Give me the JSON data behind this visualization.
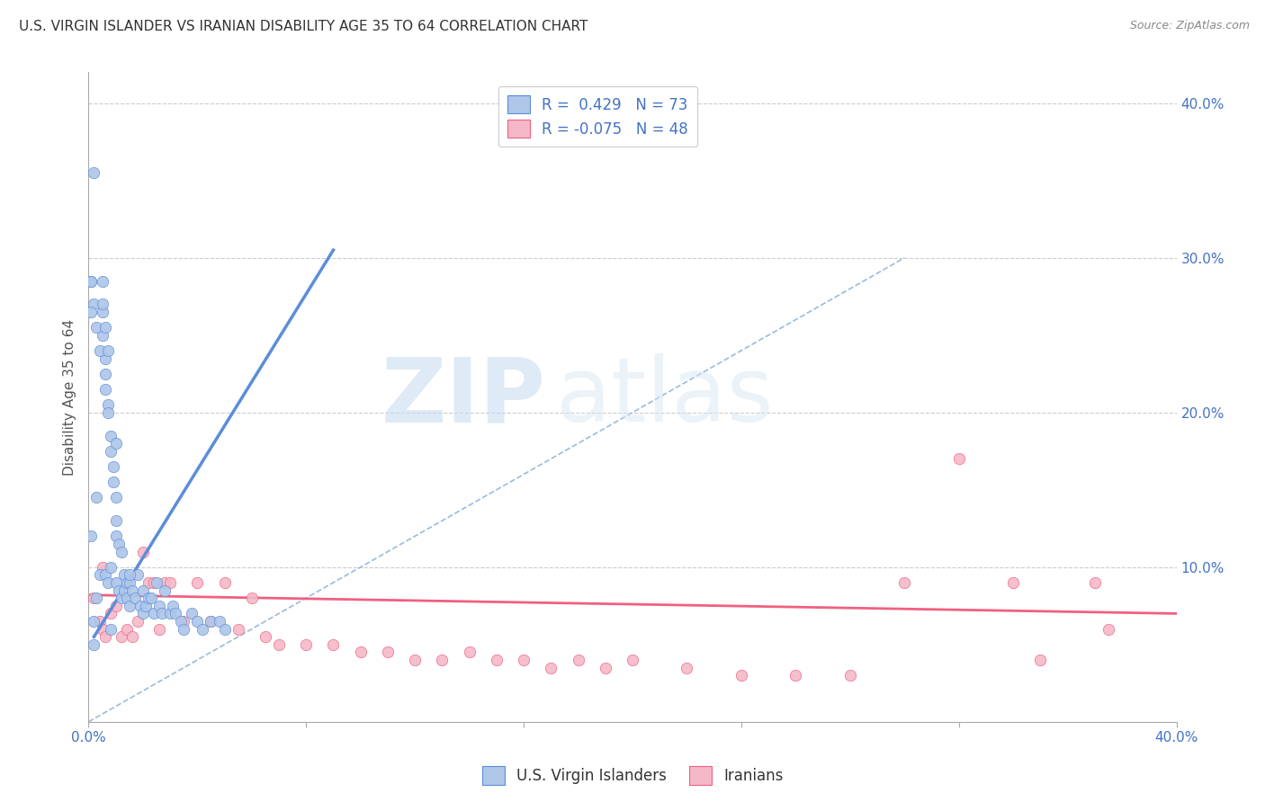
{
  "title": "U.S. VIRGIN ISLANDER VS IRANIAN DISABILITY AGE 35 TO 64 CORRELATION CHART",
  "source": "Source: ZipAtlas.com",
  "ylabel": "Disability Age 35 to 64",
  "x_min": 0.0,
  "x_max": 0.4,
  "y_min": 0.0,
  "y_max": 0.42,
  "blue_R": 0.429,
  "blue_N": 73,
  "pink_R": -0.075,
  "pink_N": 48,
  "blue_color": "#aec6e8",
  "pink_color": "#f4b8c8",
  "blue_line_color": "#5b8dd9",
  "pink_line_color": "#f06080",
  "diagonal_line_color": "#99bbdd",
  "legend_text_color": "#4472c4",
  "blue_scatter_x": [
    0.001,
    0.002,
    0.002,
    0.003,
    0.003,
    0.004,
    0.005,
    0.005,
    0.005,
    0.006,
    0.006,
    0.006,
    0.006,
    0.007,
    0.007,
    0.007,
    0.008,
    0.008,
    0.008,
    0.009,
    0.009,
    0.01,
    0.01,
    0.01,
    0.01,
    0.011,
    0.011,
    0.012,
    0.012,
    0.013,
    0.013,
    0.014,
    0.014,
    0.015,
    0.015,
    0.016,
    0.017,
    0.018,
    0.019,
    0.02,
    0.02,
    0.021,
    0.022,
    0.023,
    0.024,
    0.025,
    0.026,
    0.027,
    0.028,
    0.03,
    0.031,
    0.032,
    0.034,
    0.035,
    0.038,
    0.04,
    0.042,
    0.045,
    0.048,
    0.05,
    0.001,
    0.002,
    0.003,
    0.004,
    0.005,
    0.006,
    0.007,
    0.002,
    0.001,
    0.001,
    0.01,
    0.008,
    0.015
  ],
  "blue_scatter_y": [
    0.12,
    0.05,
    0.065,
    0.08,
    0.145,
    0.095,
    0.285,
    0.265,
    0.25,
    0.235,
    0.225,
    0.215,
    0.095,
    0.205,
    0.2,
    0.09,
    0.185,
    0.175,
    0.1,
    0.165,
    0.155,
    0.145,
    0.13,
    0.12,
    0.09,
    0.115,
    0.085,
    0.11,
    0.08,
    0.095,
    0.085,
    0.09,
    0.08,
    0.09,
    0.075,
    0.085,
    0.08,
    0.095,
    0.075,
    0.085,
    0.07,
    0.075,
    0.08,
    0.08,
    0.07,
    0.09,
    0.075,
    0.07,
    0.085,
    0.07,
    0.075,
    0.07,
    0.065,
    0.06,
    0.07,
    0.065,
    0.06,
    0.065,
    0.065,
    0.06,
    0.285,
    0.27,
    0.255,
    0.24,
    0.27,
    0.255,
    0.24,
    0.355,
    0.265,
    0.285,
    0.18,
    0.06,
    0.095
  ],
  "pink_scatter_x": [
    0.002,
    0.004,
    0.005,
    0.006,
    0.008,
    0.01,
    0.012,
    0.014,
    0.016,
    0.018,
    0.02,
    0.022,
    0.024,
    0.026,
    0.028,
    0.03,
    0.035,
    0.04,
    0.045,
    0.05,
    0.055,
    0.06,
    0.065,
    0.07,
    0.08,
    0.09,
    0.1,
    0.11,
    0.12,
    0.13,
    0.14,
    0.15,
    0.16,
    0.17,
    0.18,
    0.19,
    0.2,
    0.22,
    0.24,
    0.26,
    0.28,
    0.3,
    0.32,
    0.34,
    0.35,
    0.37,
    0.375,
    0.005
  ],
  "pink_scatter_y": [
    0.08,
    0.065,
    0.06,
    0.055,
    0.07,
    0.075,
    0.055,
    0.06,
    0.055,
    0.065,
    0.11,
    0.09,
    0.09,
    0.06,
    0.09,
    0.09,
    0.065,
    0.09,
    0.065,
    0.09,
    0.06,
    0.08,
    0.055,
    0.05,
    0.05,
    0.05,
    0.045,
    0.045,
    0.04,
    0.04,
    0.045,
    0.04,
    0.04,
    0.035,
    0.04,
    0.035,
    0.04,
    0.035,
    0.03,
    0.03,
    0.03,
    0.09,
    0.17,
    0.09,
    0.04,
    0.09,
    0.06,
    0.1
  ],
  "blue_trend_x": [
    0.002,
    0.09
  ],
  "blue_trend_y": [
    0.055,
    0.305
  ],
  "pink_trend_x": [
    0.0,
    0.4
  ],
  "pink_trend_y": [
    0.082,
    0.07
  ],
  "diag_line_x": [
    0.0,
    0.3
  ],
  "diag_line_y": [
    0.0,
    0.3
  ],
  "watermark_zip": "ZIP",
  "watermark_atlas": "atlas",
  "background_color": "#ffffff",
  "grid_color": "#cccccc"
}
